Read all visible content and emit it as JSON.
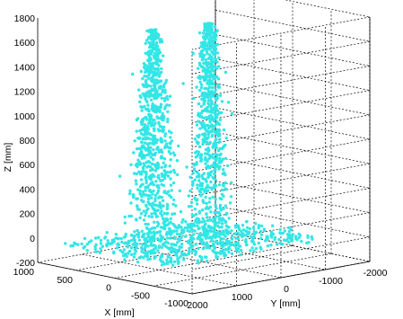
{
  "chart_data": {
    "type": "scatter",
    "title": "",
    "xlabel": "X [mm]",
    "ylabel": "Y [mm]",
    "zlabel": "Z [mm]",
    "xlim": [
      -1000,
      1000
    ],
    "ylim": [
      -2000,
      2000
    ],
    "zlim": [
      -200,
      1800
    ],
    "x_ticks": [
      "1000",
      "500",
      "0",
      "-500",
      "-1000"
    ],
    "y_ticks": [
      "2000",
      "1000",
      "0",
      "-1000",
      "-2000"
    ],
    "z_ticks": [
      "-200",
      "0",
      "200",
      "400",
      "600",
      "800",
      "1000",
      "1200",
      "1400",
      "1600",
      "1800"
    ],
    "grid": true,
    "series": [
      {
        "color": "#33e6e6",
        "clusters": [
          {
            "x": [
              0,
              150
            ],
            "y": [
              700,
              1300
            ],
            "z": [
              -60,
              1760
            ],
            "count": 820,
            "shape": "taper"
          },
          {
            "x": [
              0,
              150
            ],
            "y": [
              -500,
              0
            ],
            "z": [
              -60,
              1730
            ],
            "count": 760,
            "shape": "taper"
          },
          {
            "x": [
              -700,
              700
            ],
            "y": [
              -1500,
              2000
            ],
            "z": [
              -40,
              20
            ],
            "count": 560,
            "shape": "floor"
          }
        ]
      }
    ]
  }
}
